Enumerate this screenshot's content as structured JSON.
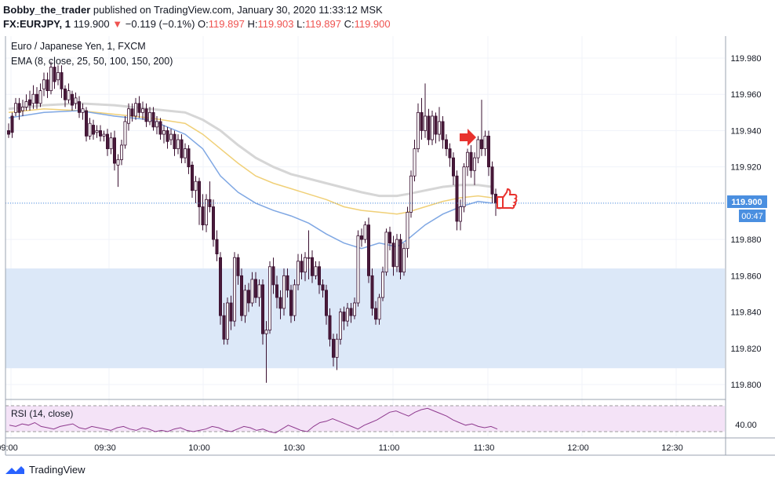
{
  "header": {
    "author": "Bobby_the_trader",
    "published_text": "published on TradingView.com, January 30, 2020 11:33:12 MSK",
    "symbol": "FX:EURJPY, 1",
    "last": "119.900",
    "arrow": "▼",
    "change": "−0.119 (−0.1%)",
    "o_label": "O:",
    "o": "119.897",
    "h_label": "H:",
    "h": "119.903",
    "l_label": "L:",
    "l": "119.897",
    "c_label": "C:",
    "c": "119.900"
  },
  "legend": {
    "instrument": "Euro / Japanese Yen, 1, FXCM",
    "ema": "EMA (8, close, 25, 50, 100, 150, 200)"
  },
  "rsi": {
    "label": "RSI (14, close)",
    "tick": "40.00"
  },
  "price_label": {
    "value": "119.900",
    "countdown": "00:47"
  },
  "brand": "TradingView",
  "colors": {
    "up": "#ffffff",
    "down": "#4a1a3a",
    "ema_blue": "#7fa7e3",
    "ema_yellow": "#f0d078",
    "ema_gray": "#d6d6d6",
    "zone": "#dce8f8",
    "rsi_line": "#8e3a8e",
    "rsi_band": "#f4e3f7",
    "price_label": "#4a8fe0",
    "annotation": "#e8322e"
  },
  "chart_data": {
    "type": "candlestick",
    "y_ticks": [
      "119.980",
      "119.960",
      "119.940",
      "119.920",
      "119.900",
      "119.880",
      "119.860",
      "119.840",
      "119.820",
      "119.800"
    ],
    "ylim": [
      119.795,
      119.99
    ],
    "x_ticks": [
      "09:00",
      "09:30",
      "10:00",
      "10:30",
      "11:00",
      "11:30",
      "12:00",
      "12:30"
    ],
    "zone": [
      119.809,
      119.864
    ],
    "candles": [
      [
        119.94,
        119.938,
        119.944,
        119.936
      ],
      [
        119.948,
        119.939,
        119.95,
        119.936
      ],
      [
        119.95,
        119.955,
        119.958,
        119.948
      ],
      [
        119.955,
        119.95,
        119.958,
        119.946
      ],
      [
        119.951,
        119.953,
        119.957,
        119.948
      ],
      [
        119.953,
        119.956,
        119.96,
        119.951
      ],
      [
        119.957,
        119.954,
        119.962,
        119.951
      ],
      [
        119.955,
        119.96,
        119.965,
        119.952
      ],
      [
        119.96,
        119.955,
        119.964,
        119.952
      ],
      [
        119.955,
        119.962,
        119.966,
        119.953
      ],
      [
        119.963,
        119.968,
        119.972,
        119.959
      ],
      [
        119.968,
        119.962,
        119.972,
        119.958
      ],
      [
        119.962,
        119.975,
        119.978,
        119.96
      ],
      [
        119.975,
        119.967,
        119.98,
        119.963
      ],
      [
        119.968,
        119.972,
        119.976,
        119.965
      ],
      [
        119.972,
        119.963,
        119.976,
        119.958
      ],
      [
        119.963,
        119.957,
        119.965,
        119.953
      ],
      [
        119.957,
        119.962,
        119.966,
        119.955
      ],
      [
        119.96,
        119.954,
        119.962,
        119.951
      ],
      [
        119.955,
        119.958,
        119.961,
        119.952
      ],
      [
        119.956,
        119.95,
        119.959,
        119.947
      ],
      [
        119.95,
        119.952,
        119.955,
        119.946
      ],
      [
        119.951,
        119.937,
        119.953,
        119.934
      ],
      [
        119.937,
        119.944,
        119.947,
        119.935
      ],
      [
        119.943,
        119.938,
        119.946,
        119.935
      ],
      [
        119.939,
        119.94,
        119.943,
        119.936
      ],
      [
        119.94,
        119.937,
        119.943,
        119.934
      ],
      [
        119.937,
        119.938,
        119.94,
        119.934
      ],
      [
        119.938,
        119.93,
        119.941,
        119.926
      ],
      [
        119.93,
        119.936,
        119.939,
        119.927
      ],
      [
        119.936,
        119.922,
        119.94,
        119.918
      ],
      [
        119.921,
        119.924,
        119.927,
        119.909
      ],
      [
        119.924,
        119.932,
        119.935,
        119.921
      ],
      [
        119.932,
        119.945,
        119.948,
        119.93
      ],
      [
        119.944,
        119.952,
        119.955,
        119.94
      ],
      [
        119.952,
        119.948,
        119.955,
        119.945
      ],
      [
        119.948,
        119.955,
        119.958,
        119.946
      ],
      [
        119.955,
        119.95,
        119.959,
        119.947
      ],
      [
        119.95,
        119.952,
        119.956,
        119.946
      ],
      [
        119.952,
        119.945,
        119.955,
        119.942
      ],
      [
        119.945,
        119.95,
        119.953,
        119.943
      ],
      [
        119.95,
        119.942,
        119.953,
        119.94
      ],
      [
        119.942,
        119.945,
        119.948,
        119.938
      ],
      [
        119.945,
        119.938,
        119.947,
        119.935
      ],
      [
        119.938,
        119.94,
        119.943,
        119.933
      ],
      [
        119.94,
        119.934,
        119.942,
        119.93
      ],
      [
        119.935,
        119.938,
        119.941,
        119.932
      ],
      [
        119.938,
        119.93,
        119.94,
        119.926
      ],
      [
        119.93,
        119.935,
        119.938,
        119.927
      ],
      [
        119.935,
        119.925,
        119.938,
        119.922
      ],
      [
        119.925,
        119.93,
        119.933,
        119.922
      ],
      [
        119.93,
        119.92,
        119.932,
        119.916
      ],
      [
        119.921,
        119.907,
        119.923,
        119.903
      ],
      [
        119.907,
        119.912,
        119.915,
        119.9
      ],
      [
        119.912,
        119.898,
        119.914,
        119.888
      ],
      [
        119.898,
        119.888,
        119.905,
        119.885
      ],
      [
        119.888,
        119.902,
        119.905,
        119.884
      ],
      [
        119.902,
        119.898,
        119.912,
        119.895
      ],
      [
        119.898,
        119.88,
        119.902,
        119.876
      ],
      [
        119.88,
        119.872,
        119.885,
        119.868
      ],
      [
        119.87,
        119.838,
        119.873,
        119.833
      ],
      [
        119.838,
        119.825,
        119.845,
        119.822
      ],
      [
        119.825,
        119.845,
        119.848,
        119.822
      ],
      [
        119.845,
        119.835,
        119.849,
        119.83
      ],
      [
        119.835,
        119.87,
        119.873,
        119.832
      ],
      [
        119.87,
        119.86,
        119.872,
        119.855
      ],
      [
        119.86,
        119.838,
        119.864,
        119.835
      ],
      [
        119.838,
        119.852,
        119.855,
        119.834
      ],
      [
        119.852,
        119.845,
        119.856,
        119.84
      ],
      [
        119.845,
        119.858,
        119.862,
        119.843
      ],
      [
        119.858,
        119.848,
        119.862,
        119.845
      ],
      [
        119.848,
        119.855,
        119.858,
        119.843
      ],
      [
        119.855,
        119.828,
        119.858,
        119.822
      ],
      [
        119.828,
        119.83,
        119.835,
        119.801
      ],
      [
        119.83,
        119.865,
        119.868,
        119.828
      ],
      [
        119.865,
        119.855,
        119.87,
        119.85
      ],
      [
        119.855,
        119.848,
        119.86,
        119.842
      ],
      [
        119.848,
        119.842,
        119.852,
        119.836
      ],
      [
        119.842,
        119.86,
        119.864,
        119.838
      ],
      [
        119.86,
        119.852,
        119.864,
        119.848
      ],
      [
        119.852,
        119.838,
        119.855,
        119.834
      ],
      [
        119.838,
        119.855,
        119.858,
        119.835
      ],
      [
        119.855,
        119.868,
        119.872,
        119.852
      ],
      [
        119.868,
        119.862,
        119.872,
        119.858
      ],
      [
        119.862,
        119.87,
        119.873,
        119.857
      ],
      [
        119.87,
        119.87,
        119.885,
        119.858
      ],
      [
        119.87,
        119.86,
        119.874,
        119.856
      ],
      [
        119.86,
        119.865,
        119.868,
        119.858
      ],
      [
        119.865,
        119.855,
        119.868,
        119.85
      ],
      [
        119.855,
        119.852,
        119.858,
        119.848
      ],
      [
        119.852,
        119.838,
        119.855,
        119.833
      ],
      [
        119.838,
        119.825,
        119.842,
        119.821
      ],
      [
        119.825,
        119.815,
        119.828,
        119.81
      ],
      [
        119.815,
        119.825,
        119.828,
        119.808
      ],
      [
        119.825,
        119.84,
        119.842,
        119.822
      ],
      [
        119.84,
        119.835,
        119.843,
        119.83
      ],
      [
        119.835,
        119.842,
        119.845,
        119.832
      ],
      [
        119.842,
        119.838,
        119.845,
        119.834
      ],
      [
        119.838,
        119.845,
        119.848,
        119.836
      ],
      [
        119.845,
        119.882,
        119.885,
        119.843
      ],
      [
        119.882,
        119.88,
        119.886,
        119.876
      ],
      [
        119.88,
        119.888,
        119.89,
        119.878
      ],
      [
        119.888,
        119.86,
        119.892,
        119.856
      ],
      [
        119.86,
        119.842,
        119.864,
        119.838
      ],
      [
        119.842,
        119.836,
        119.846,
        119.833
      ],
      [
        119.836,
        119.848,
        119.85,
        119.833
      ],
      [
        119.848,
        119.862,
        119.865,
        119.846
      ],
      [
        119.862,
        119.884,
        119.886,
        119.86
      ],
      [
        119.884,
        119.878,
        119.887,
        119.874
      ],
      [
        119.878,
        119.865,
        119.882,
        119.86
      ],
      [
        119.865,
        119.88,
        119.883,
        119.862
      ],
      [
        119.88,
        119.862,
        119.883,
        119.858
      ],
      [
        119.862,
        119.875,
        119.878,
        119.86
      ],
      [
        119.875,
        119.895,
        119.898,
        119.87
      ],
      [
        119.895,
        119.915,
        119.918,
        119.892
      ],
      [
        119.915,
        119.93,
        119.935,
        119.912
      ],
      [
        119.93,
        119.95,
        119.955,
        119.928
      ],
      [
        119.95,
        119.94,
        119.958,
        119.935
      ],
      [
        119.94,
        119.948,
        119.966,
        119.936
      ],
      [
        119.948,
        119.935,
        119.952,
        119.932
      ],
      [
        119.935,
        119.948,
        119.951,
        119.932
      ],
      [
        119.948,
        119.938,
        119.95,
        119.933
      ],
      [
        119.938,
        119.945,
        119.953,
        119.934
      ],
      [
        119.945,
        119.935,
        119.948,
        119.93
      ],
      [
        119.935,
        119.93,
        119.938,
        119.926
      ],
      [
        119.93,
        119.925,
        119.933,
        119.92
      ],
      [
        119.925,
        119.915,
        119.928,
        119.91
      ],
      [
        119.915,
        119.89,
        119.918,
        119.885
      ],
      [
        119.89,
        119.898,
        119.902,
        119.885
      ],
      [
        119.898,
        119.92,
        119.922,
        119.895
      ],
      [
        119.92,
        119.928,
        119.93,
        119.915
      ],
      [
        119.928,
        119.918,
        119.932,
        119.914
      ],
      [
        119.918,
        119.925,
        119.928,
        119.91
      ],
      [
        119.925,
        119.935,
        119.937,
        119.922
      ],
      [
        119.935,
        119.93,
        119.957,
        119.926
      ],
      [
        119.93,
        119.937,
        119.94,
        119.926
      ],
      [
        119.937,
        119.92,
        119.94,
        119.915
      ],
      [
        119.92,
        119.905,
        119.923,
        119.9
      ],
      [
        119.905,
        119.9,
        119.908,
        119.893
      ],
      [
        119.897,
        119.9,
        119.903,
        119.897
      ]
    ],
    "ema": [
      {
        "name": "ema_blue",
        "values": [
          [
            0,
            119.947
          ],
          [
            10,
            119.95
          ],
          [
            20,
            119.951
          ],
          [
            30,
            119.948
          ],
          [
            40,
            119.946
          ],
          [
            50,
            119.938
          ],
          [
            55,
            119.93
          ],
          [
            60,
            119.915
          ],
          [
            65,
            119.906
          ],
          [
            70,
            119.9
          ],
          [
            75,
            119.896
          ],
          [
            80,
            119.893
          ],
          [
            85,
            119.889
          ],
          [
            90,
            119.883
          ],
          [
            95,
            119.878
          ],
          [
            100,
            119.875
          ],
          [
            105,
            119.878
          ],
          [
            110,
            119.876
          ],
          [
            113,
            119.88
          ],
          [
            118,
            119.888
          ],
          [
            123,
            119.894
          ],
          [
            128,
            119.898
          ],
          [
            133,
            119.901
          ],
          [
            137,
            119.9
          ]
        ]
      },
      {
        "name": "ema_yellow",
        "values": [
          [
            0,
            119.95
          ],
          [
            10,
            119.952
          ],
          [
            20,
            119.951
          ],
          [
            30,
            119.949
          ],
          [
            40,
            119.947
          ],
          [
            50,
            119.944
          ],
          [
            55,
            119.938
          ],
          [
            60,
            119.93
          ],
          [
            65,
            119.922
          ],
          [
            70,
            119.915
          ],
          [
            75,
            119.911
          ],
          [
            80,
            119.908
          ],
          [
            90,
            119.902
          ],
          [
            95,
            119.898
          ],
          [
            100,
            119.896
          ],
          [
            105,
            119.895
          ],
          [
            110,
            119.894
          ],
          [
            113,
            119.895
          ],
          [
            118,
            119.898
          ],
          [
            123,
            119.901
          ],
          [
            128,
            119.903
          ],
          [
            133,
            119.904
          ],
          [
            137,
            119.903
          ]
        ]
      },
      {
        "name": "ema_gray",
        "values": [
          [
            0,
            119.952
          ],
          [
            10,
            119.954
          ],
          [
            20,
            119.955
          ],
          [
            30,
            119.954
          ],
          [
            40,
            119.952
          ],
          [
            50,
            119.95
          ],
          [
            55,
            119.946
          ],
          [
            60,
            119.94
          ],
          [
            65,
            119.932
          ],
          [
            70,
            119.925
          ],
          [
            75,
            119.92
          ],
          [
            80,
            119.916
          ],
          [
            90,
            119.911
          ],
          [
            100,
            119.906
          ],
          [
            105,
            119.904
          ],
          [
            110,
            119.904
          ],
          [
            113,
            119.905
          ],
          [
            118,
            119.907
          ],
          [
            123,
            119.909
          ],
          [
            128,
            119.91
          ],
          [
            133,
            119.91
          ],
          [
            137,
            119.909
          ]
        ]
      }
    ],
    "rsi_values": [
      45,
      44,
      46,
      45,
      47,
      44,
      43,
      42,
      44,
      45,
      46,
      43,
      42,
      44,
      43,
      42,
      41,
      43,
      44,
      42,
      41,
      43,
      42,
      40,
      41,
      40,
      42,
      43,
      41,
      40,
      41,
      42,
      44,
      43,
      41,
      40,
      42,
      44,
      43,
      41,
      42,
      40,
      39,
      42,
      45,
      43,
      41,
      40,
      44,
      47,
      48,
      50,
      48,
      46,
      44,
      42,
      45,
      47,
      49,
      52,
      55,
      56,
      54,
      52,
      55,
      57,
      58,
      56,
      54,
      52,
      49,
      47,
      45,
      46,
      44,
      43,
      44,
      42
    ]
  }
}
